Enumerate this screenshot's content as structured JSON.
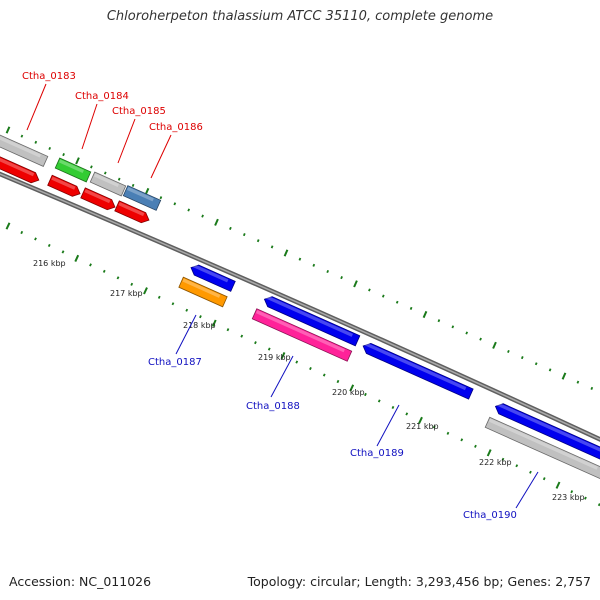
{
  "title": "Chloroherpeton thalassium ATCC 35110, complete genome",
  "footer": {
    "accession": "Accession: NC_011026",
    "summary": "Topology: circular; Length: 3,293,456 bp; Genes: 2,757"
  },
  "colors": {
    "backbone": "#777777",
    "tick": "#1a7a1a",
    "top_strand_label": "#dd0000",
    "bottom_strand_label": "#1010c0"
  },
  "position_labels": [
    "216 kbp",
    "217 kbp",
    "218 kbp",
    "219 kbp",
    "220 kbp",
    "221 kbp",
    "222 kbp",
    "223 kbp"
  ],
  "gene_labels": [
    {
      "text": "Ctha_0183",
      "strand": "top"
    },
    {
      "text": "Ctha_0184",
      "strand": "top"
    },
    {
      "text": "Ctha_0185",
      "strand": "top"
    },
    {
      "text": "Ctha_0186",
      "strand": "top"
    },
    {
      "text": "Ctha_0187",
      "strand": "bottom"
    },
    {
      "text": "Ctha_0188",
      "strand": "bottom"
    },
    {
      "text": "Ctha_0189",
      "strand": "bottom"
    },
    {
      "text": "Ctha_0190",
      "strand": "bottom"
    }
  ],
  "features": [
    {
      "name": "feature-0183-gray",
      "color": "#c0c0c0"
    },
    {
      "name": "feature-0184-green",
      "color": "#33cc33"
    },
    {
      "name": "feature-0185-gray",
      "color": "#c0c0c0"
    },
    {
      "name": "feature-0186-steelblue",
      "color": "#4a7fb5"
    },
    {
      "name": "cds-0183-red",
      "color": "#ee0000"
    },
    {
      "name": "cds-0184-red",
      "color": "#ee0000"
    },
    {
      "name": "cds-0185-red",
      "color": "#ee0000"
    },
    {
      "name": "cds-0186-red",
      "color": "#ee0000"
    },
    {
      "name": "cds-0187-blue",
      "color": "#0000ee"
    },
    {
      "name": "feature-0187-orange",
      "color": "#ff9900"
    },
    {
      "name": "cds-0188-blue",
      "color": "#0000ee"
    },
    {
      "name": "feature-0188-magenta",
      "color": "#ff2299"
    },
    {
      "name": "cds-0189-blue",
      "color": "#0000ee"
    },
    {
      "name": "cds-0190-blue",
      "color": "#0000ee"
    },
    {
      "name": "feature-0190-gray",
      "color": "#c0c0c0"
    }
  ]
}
